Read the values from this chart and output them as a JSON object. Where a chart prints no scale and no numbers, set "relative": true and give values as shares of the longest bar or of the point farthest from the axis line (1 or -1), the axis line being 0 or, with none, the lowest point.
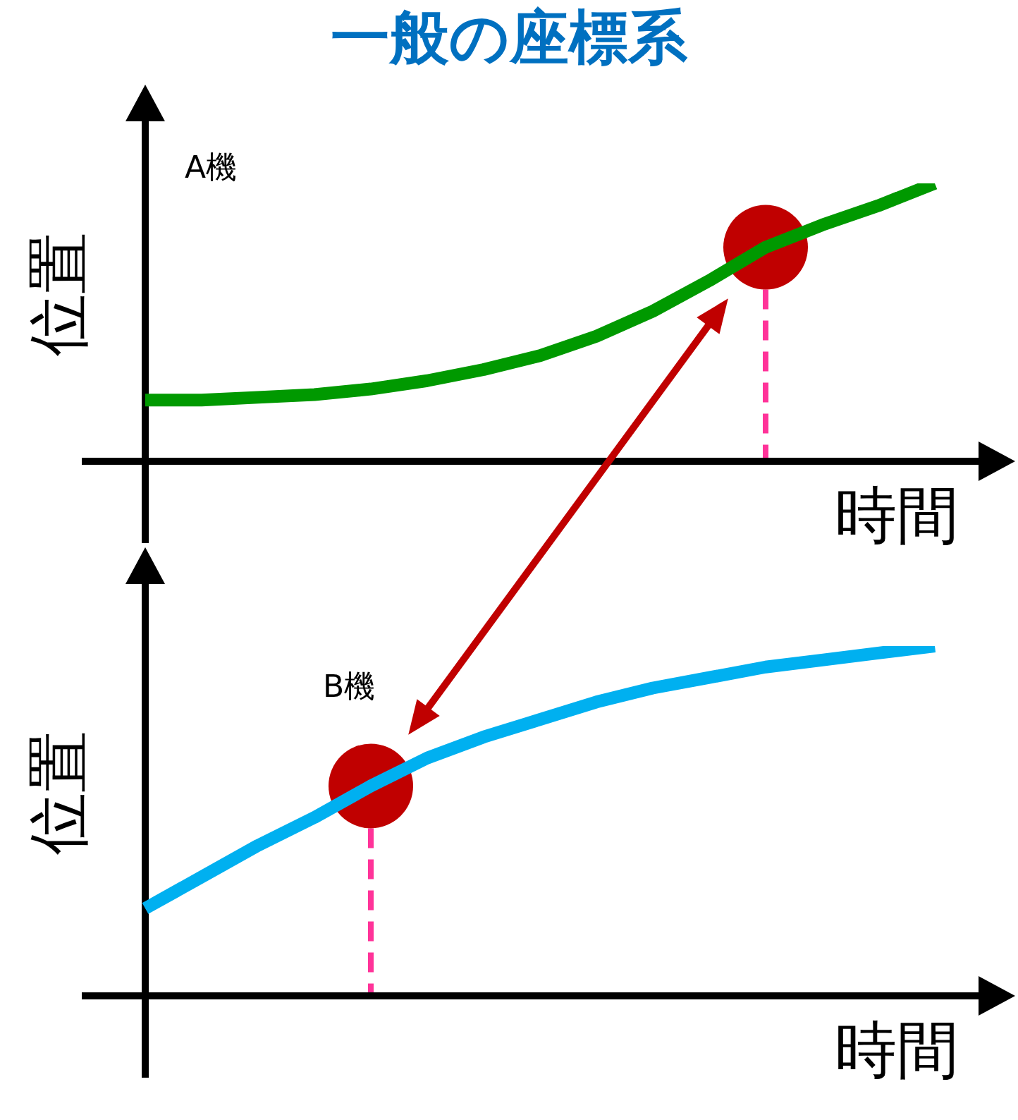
{
  "chart_data": [
    {
      "type": "line",
      "title": "一般の座標系",
      "xlabel": "時間",
      "ylabel": "位置",
      "relative": true,
      "annotations": [
        "A機"
      ],
      "categories": [
        null,
        null,
        null,
        null,
        null,
        null,
        null,
        null,
        null,
        null,
        null,
        null,
        null,
        null,
        null
      ],
      "series": [
        {
          "color": "#009900",
          "values": [
            0.22,
            0.22,
            0.23,
            0.24,
            0.26,
            0.29,
            0.33,
            0.38,
            0.45,
            0.54,
            0.65,
            0.77,
            0.85,
            0.92,
            1
          ]
        }
      ]
    },
    {
      "type": "line",
      "xlabel": "時間",
      "ylabel": "位置",
      "relative": true,
      "annotations": [
        "B機"
      ],
      "categories": [
        null,
        null,
        null,
        null,
        null,
        null,
        null,
        null,
        null,
        null,
        null,
        null,
        null,
        null,
        null
      ],
      "series": [
        {
          "color": "#00b0f0",
          "values": [
            0.25,
            0.34,
            0.43,
            0.51,
            0.6,
            0.68,
            0.74,
            0.79,
            0.84,
            0.88,
            0.91,
            0.94,
            0.96,
            0.98,
            1
          ]
        }
      ]
    }
  ]
}
